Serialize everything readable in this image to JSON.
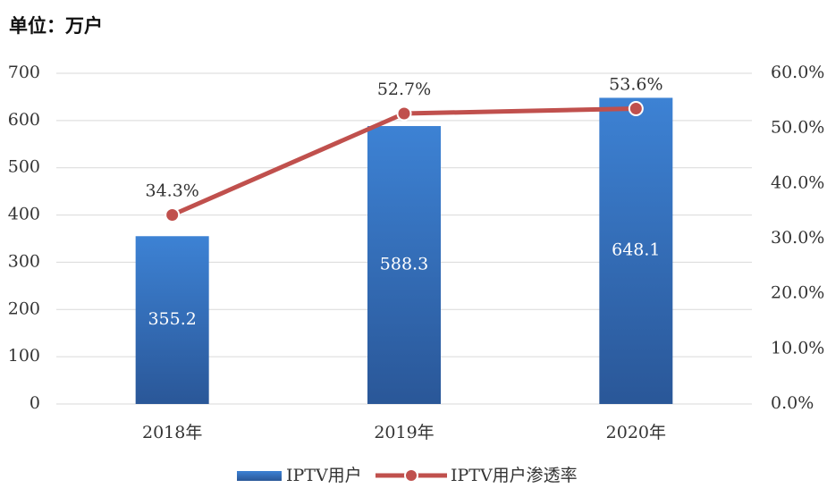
{
  "chart_data": {
    "type": "bar-line",
    "unit_label": "单位：万户",
    "categories": [
      "2018年",
      "2019年",
      "2020年"
    ],
    "series": [
      {
        "name": "IPTV用户",
        "color": "#3674c4",
        "values": [
          355.2,
          588.3,
          648.1
        ]
      },
      {
        "name": "IPTV用户渗透率",
        "color": "#c0504d",
        "axis": "y2",
        "values": [
          34.3,
          52.7,
          53.6
        ],
        "value_labels": [
          "34.3%",
          "52.7%",
          "53.6%"
        ]
      }
    ],
    "ylim": [
      0,
      700
    ],
    "yticks": [
      0,
      100,
      200,
      300,
      400,
      500,
      600,
      700
    ],
    "y2lim": [
      0,
      60
    ],
    "y2ticks": [
      {
        "value": 0,
        "label": "0.0%"
      },
      {
        "value": 10,
        "label": "10.0%"
      },
      {
        "value": 20,
        "label": "20.0%"
      },
      {
        "value": 30,
        "label": "30.0%"
      },
      {
        "value": 40,
        "label": "40.0%"
      },
      {
        "value": 50,
        "label": "50.0%"
      },
      {
        "value": 60,
        "label": "60.0%"
      }
    ],
    "grid": true
  }
}
